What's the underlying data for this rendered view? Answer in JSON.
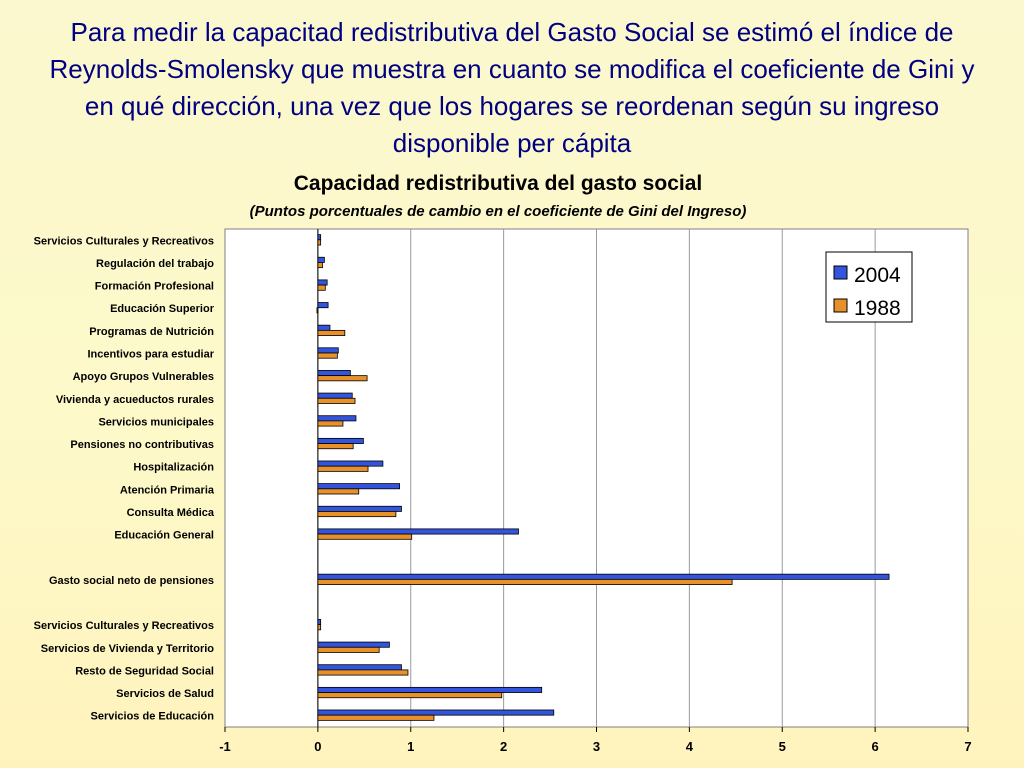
{
  "slide": {
    "title": "Para medir la capacitad redistributiva del Gasto Social se estimó el índice de Reynolds-Smolensky que muestra en cuanto se modifica el coeficiente de Gini y en qué dirección, una vez que los hogares se reordenan según su ingreso disponible per cápita"
  },
  "chart_data": {
    "type": "bar",
    "orientation": "horizontal",
    "title": "Capacidad redistributiva del gasto social",
    "subtitle": "(Puntos porcentuales de cambio en el coeficiente de Gini del Ingreso)",
    "xlim": [
      -1,
      7
    ],
    "xticks": [
      -1,
      0,
      1,
      2,
      3,
      4,
      5,
      6,
      7
    ],
    "grid": "vertical",
    "legend_position": "top-right",
    "categories": [
      "Servicios Culturales y Recreativos",
      "Regulación del trabajo",
      "Formación Profesional",
      "Educación Superior",
      "Programas de Nutrición",
      "Incentivos para estudiar",
      "Apoyo Grupos Vulnerables",
      "Vivienda y acueductos rurales",
      "Servicios municipales",
      "Pensiones no contributivas",
      "Hospitalización",
      "Atención Primaria",
      "Consulta Médica",
      "Educación General",
      "",
      "Gasto social neto de pensiones",
      "",
      "Servicios Culturales y Recreativos",
      "Servicios de Vivienda y Territorio",
      "Resto de Seguridad Social",
      "Servicios de Salud",
      "Servicios de Educación"
    ],
    "series": [
      {
        "name": "2004",
        "color": "#3355dd",
        "values": [
          0.03,
          0.07,
          0.1,
          0.11,
          0.13,
          0.22,
          0.35,
          0.37,
          0.41,
          0.49,
          0.7,
          0.88,
          0.9,
          2.16,
          null,
          6.15,
          null,
          0.03,
          0.77,
          0.9,
          2.41,
          2.54
        ]
      },
      {
        "name": "1988",
        "color": "#e8902a",
        "values": [
          0.03,
          0.05,
          0.08,
          -0.01,
          0.29,
          0.21,
          0.53,
          0.4,
          0.27,
          0.38,
          0.54,
          0.44,
          0.84,
          1.01,
          null,
          4.46,
          null,
          0.03,
          0.66,
          0.97,
          1.98,
          1.25
        ]
      }
    ]
  }
}
